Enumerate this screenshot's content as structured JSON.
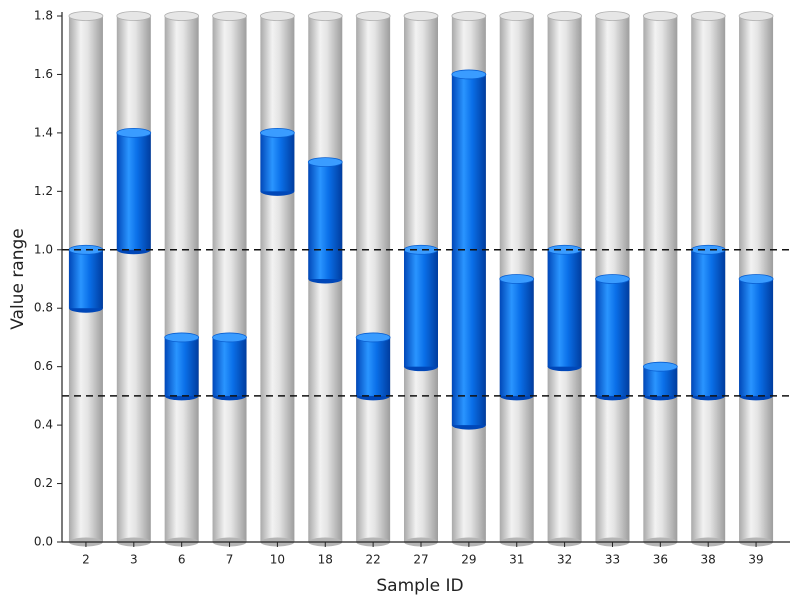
{
  "chart_data": {
    "type": "floating-bar",
    "x_label": "Sample ID",
    "y_label": "Value range",
    "categories": [
      "2",
      "3",
      "6",
      "7",
      "10",
      "18",
      "22",
      "27",
      "29",
      "31",
      "32",
      "33",
      "36",
      "38",
      "39"
    ],
    "ranges": [
      [
        0.8,
        1.0
      ],
      [
        1.0,
        1.4
      ],
      [
        0.5,
        0.7
      ],
      [
        0.5,
        0.7
      ],
      [
        1.2,
        1.4
      ],
      [
        0.9,
        1.3
      ],
      [
        0.5,
        0.7
      ],
      [
        0.6,
        1.0
      ],
      [
        0.4,
        1.6
      ],
      [
        0.5,
        0.9
      ],
      [
        0.6,
        1.0
      ],
      [
        0.5,
        0.9
      ],
      [
        0.5,
        0.6
      ],
      [
        0.5,
        1.0
      ],
      [
        0.5,
        0.9
      ]
    ],
    "color": "#0a6fe8",
    "track_color": "#c8c8c8",
    "ylim": [
      0,
      1.8
    ],
    "yticks": [
      {
        "value": 0,
        "label": "0.0"
      },
      0.2,
      0.4,
      0.6,
      0.8,
      {
        "value": 1,
        "label": "1.0"
      },
      1.2,
      1.4,
      1.6,
      1.8
    ],
    "reference_lines": [
      0.5,
      1.0
    ]
  }
}
